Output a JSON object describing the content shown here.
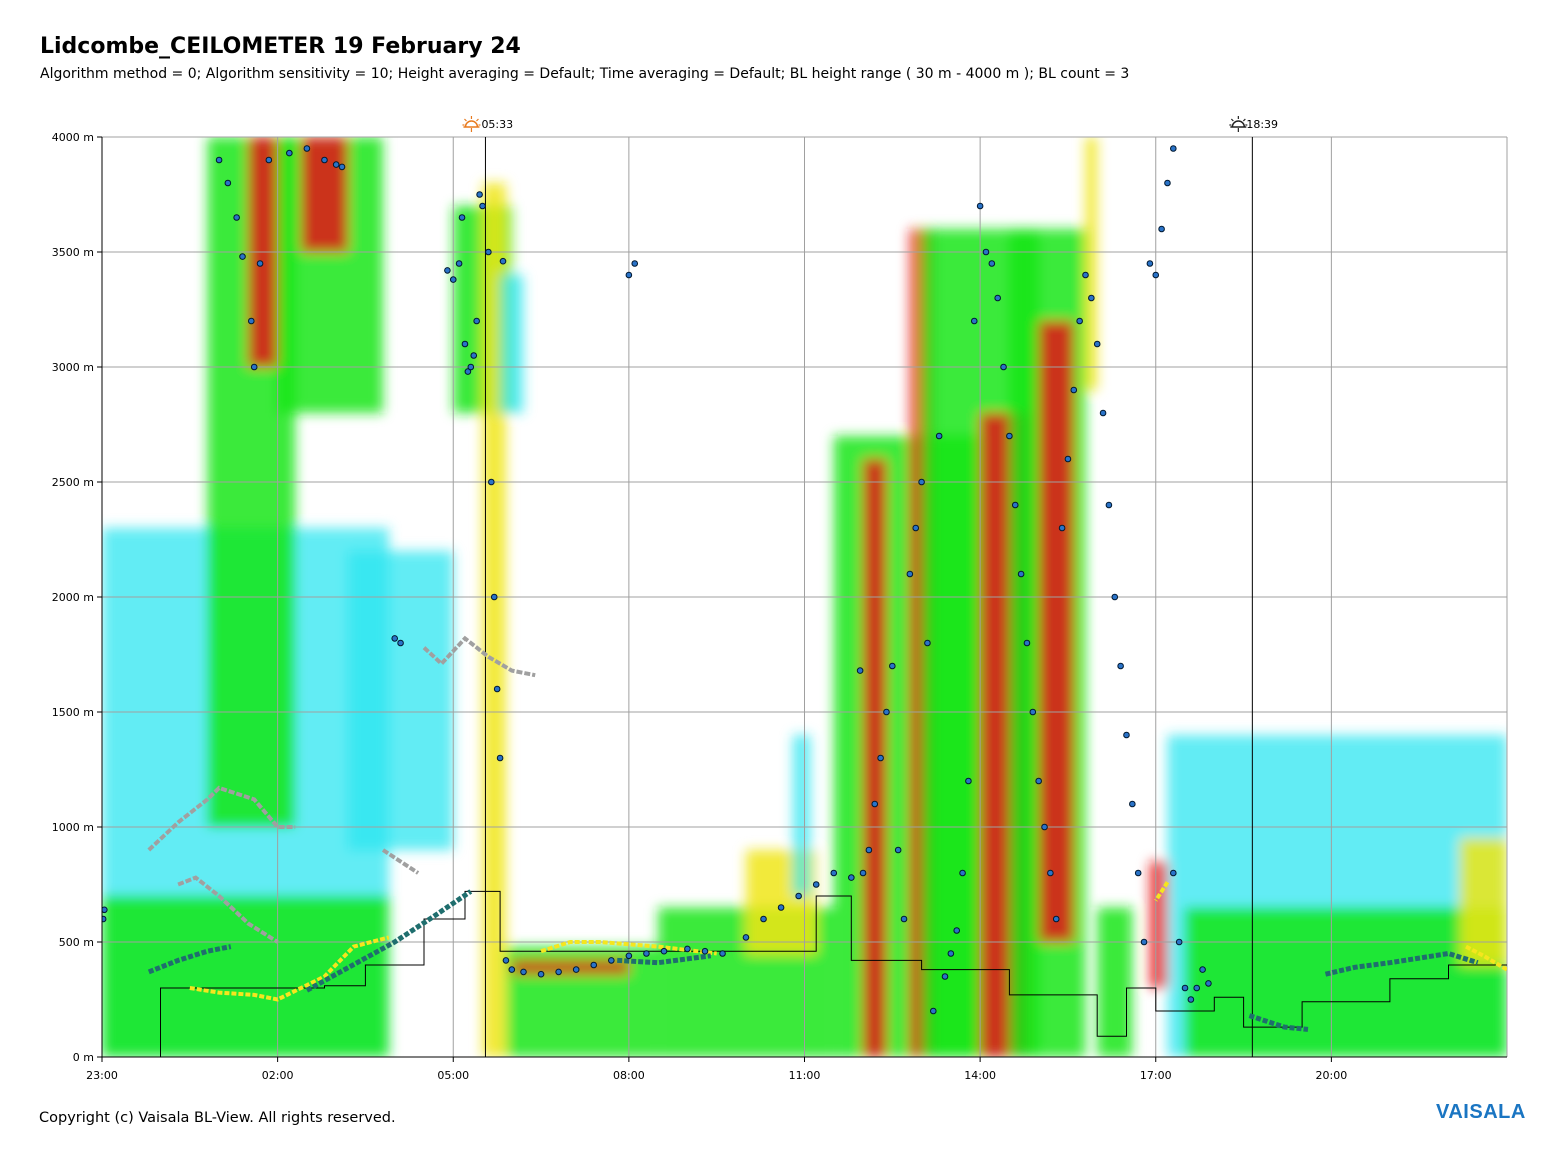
{
  "header": {
    "title": "Lidcombe_CEILOMETER 19 February 24",
    "subtitle": "Algorithm method = 0; Algorithm sensitivity = 10; Height averaging = Default; Time averaging = Default; BL height range ( 30 m - 4000 m ); BL count = 3"
  },
  "footer": {
    "copyright": "Copyright (c) Vaisala BL-View. All rights reserved.",
    "logo_text": "VAISALA"
  },
  "colors": {
    "weak": "#2ee6f0",
    "low": "#14e614",
    "mid": "#f0e614",
    "high": "#e61414",
    "bl_marker": "#2a73c8",
    "bl_step": "#000000",
    "sunrise_icon": "#e87a1e",
    "sunset_icon": "#222222",
    "logo": "#1a75c2"
  },
  "chart_data": {
    "type": "heatmap",
    "xlabel": "",
    "ylabel": "",
    "x_ticks": [
      "23:00",
      "02:00",
      "05:00",
      "08:00",
      "11:00",
      "14:00",
      "17:00",
      "20:00"
    ],
    "y_ticks": [
      "0 m",
      "500 m",
      "1000 m",
      "1500 m",
      "2000 m",
      "2500 m",
      "3000 m",
      "3500 m",
      "4000 m"
    ],
    "xlim_hours": [
      23,
      47
    ],
    "ylim_m": [
      0,
      4000
    ],
    "grid": true,
    "sunrise": {
      "label": "05:33",
      "hour": 29.55
    },
    "sunset": {
      "label": "18:39",
      "hour": 42.65
    },
    "backscatter_regions": [
      {
        "level": "weak",
        "x": [
          23.0,
          27.9
        ],
        "y": [
          0,
          2300
        ]
      },
      {
        "level": "low",
        "x": [
          23.0,
          27.9
        ],
        "y": [
          0,
          700
        ]
      },
      {
        "level": "low",
        "x": [
          24.8,
          26.3
        ],
        "y": [
          1000,
          4000
        ]
      },
      {
        "level": "high",
        "x": [
          25.5,
          26.0
        ],
        "y": [
          3000,
          4000
        ]
      },
      {
        "level": "low",
        "x": [
          26.0,
          27.8
        ],
        "y": [
          2800,
          4000
        ]
      },
      {
        "level": "high",
        "x": [
          26.4,
          27.2
        ],
        "y": [
          3500,
          4000
        ]
      },
      {
        "level": "weak",
        "x": [
          27.2,
          29.0
        ],
        "y": [
          900,
          2200
        ]
      },
      {
        "level": "low",
        "x": [
          29.0,
          30.0
        ],
        "y": [
          2800,
          3700
        ]
      },
      {
        "level": "mid",
        "x": [
          29.5,
          29.9
        ],
        "y": [
          0,
          3800
        ]
      },
      {
        "level": "weak",
        "x": [
          29.8,
          30.2
        ],
        "y": [
          2800,
          3400
        ]
      },
      {
        "level": "low",
        "x": [
          29.9,
          32.5
        ],
        "y": [
          0,
          480
        ]
      },
      {
        "level": "high",
        "x": [
          30.0,
          32.0
        ],
        "y": [
          360,
          420
        ]
      },
      {
        "level": "low",
        "x": [
          32.5,
          35.5
        ],
        "y": [
          0,
          650
        ]
      },
      {
        "level": "mid",
        "x": [
          34.0,
          35.2
        ],
        "y": [
          450,
          900
        ]
      },
      {
        "level": "weak",
        "x": [
          34.8,
          35.1
        ],
        "y": [
          700,
          1400
        ]
      },
      {
        "level": "low",
        "x": [
          35.5,
          38.0
        ],
        "y": [
          0,
          2700
        ]
      },
      {
        "level": "high",
        "x": [
          36.0,
          36.4
        ],
        "y": [
          0,
          2600
        ]
      },
      {
        "level": "high",
        "x": [
          36.8,
          37.2
        ],
        "y": [
          0,
          3600
        ]
      },
      {
        "level": "low",
        "x": [
          37.0,
          39.0
        ],
        "y": [
          0,
          3600
        ]
      },
      {
        "level": "high",
        "x": [
          38.0,
          38.8
        ],
        "y": [
          0,
          2800
        ]
      },
      {
        "level": "low",
        "x": [
          38.5,
          39.8
        ],
        "y": [
          0,
          3600
        ]
      },
      {
        "level": "high",
        "x": [
          39.0,
          39.6
        ],
        "y": [
          500,
          3200
        ]
      },
      {
        "level": "mid",
        "x": [
          39.8,
          40.0
        ],
        "y": [
          2900,
          4000
        ]
      },
      {
        "level": "low",
        "x": [
          40.0,
          40.6
        ],
        "y": [
          0,
          650
        ]
      },
      {
        "level": "high",
        "x": [
          40.9,
          41.2
        ],
        "y": [
          300,
          850
        ]
      },
      {
        "level": "weak",
        "x": [
          41.2,
          47.0
        ],
        "y": [
          0,
          1400
        ]
      },
      {
        "level": "low",
        "x": [
          41.5,
          47.0
        ],
        "y": [
          0,
          650
        ]
      },
      {
        "level": "mid",
        "x": [
          46.2,
          47.0
        ],
        "y": [
          400,
          950
        ]
      }
    ],
    "bl_step_line": [
      [
        23.0,
        0
      ],
      [
        24.0,
        300
      ],
      [
        26.8,
        310
      ],
      [
        27.5,
        400
      ],
      [
        28.5,
        600
      ],
      [
        29.2,
        720
      ],
      [
        29.8,
        460
      ],
      [
        34.0,
        460
      ],
      [
        35.2,
        700
      ],
      [
        35.8,
        420
      ],
      [
        37.0,
        380
      ],
      [
        38.5,
        270
      ],
      [
        40.0,
        90
      ],
      [
        40.5,
        300
      ],
      [
        41.0,
        200
      ],
      [
        42.0,
        260
      ],
      [
        42.5,
        130
      ],
      [
        43.5,
        240
      ],
      [
        45.0,
        340
      ],
      [
        46.0,
        400
      ],
      [
        47.0,
        400
      ]
    ],
    "bl_gray_traces": [
      [
        [
          23.8,
          900
        ],
        [
          24.3,
          1020
        ],
        [
          24.8,
          1120
        ],
        [
          25.0,
          1170
        ],
        [
          25.6,
          1120
        ],
        [
          26.0,
          1000
        ],
        [
          26.3,
          1000
        ]
      ],
      [
        [
          24.3,
          750
        ],
        [
          24.6,
          780
        ],
        [
          25.0,
          700
        ],
        [
          25.5,
          580
        ],
        [
          26.0,
          500
        ]
      ],
      [
        [
          27.8,
          900
        ],
        [
          28.4,
          800
        ]
      ],
      [
        [
          28.5,
          1780
        ],
        [
          28.8,
          1710
        ],
        [
          29.2,
          1820
        ],
        [
          29.6,
          1740
        ],
        [
          30.0,
          1680
        ],
        [
          30.4,
          1660
        ]
      ]
    ],
    "bl_yellow_traces": [
      [
        [
          24.5,
          300
        ],
        [
          25.0,
          280
        ],
        [
          25.6,
          270
        ],
        [
          26.0,
          250
        ],
        [
          26.8,
          350
        ],
        [
          27.3,
          480
        ],
        [
          27.9,
          520
        ]
      ],
      [
        [
          30.5,
          460
        ],
        [
          31.0,
          500
        ],
        [
          31.5,
          500
        ],
        [
          32.5,
          480
        ],
        [
          33.5,
          450
        ]
      ],
      [
        [
          41.2,
          760
        ],
        [
          41.0,
          680
        ]
      ],
      [
        [
          46.3,
          480
        ],
        [
          46.6,
          440
        ],
        [
          47.0,
          380
        ]
      ]
    ],
    "bl_teal_traces": [
      [
        [
          23.8,
          370
        ],
        [
          24.3,
          420
        ],
        [
          24.8,
          460
        ],
        [
          25.2,
          480
        ]
      ],
      [
        [
          26.5,
          290
        ],
        [
          27.0,
          360
        ],
        [
          27.5,
          430
        ],
        [
          28.0,
          500
        ],
        [
          28.6,
          600
        ],
        [
          29.3,
          720
        ]
      ],
      [
        [
          31.8,
          420
        ],
        [
          32.5,
          410
        ],
        [
          33.4,
          440
        ]
      ],
      [
        [
          42.6,
          180
        ],
        [
          43.2,
          130
        ],
        [
          43.6,
          120
        ]
      ],
      [
        [
          43.9,
          360
        ],
        [
          44.4,
          390
        ],
        [
          45.0,
          410
        ],
        [
          45.5,
          430
        ],
        [
          46.0,
          450
        ],
        [
          46.5,
          410
        ]
      ]
    ],
    "bl_points": [
      [
        23.02,
        600
      ],
      [
        23.04,
        640
      ],
      [
        25.0,
        3900
      ],
      [
        25.15,
        3800
      ],
      [
        25.3,
        3650
      ],
      [
        25.4,
        3480
      ],
      [
        25.55,
        3200
      ],
      [
        25.6,
        3000
      ],
      [
        25.7,
        3450
      ],
      [
        25.85,
        3900
      ],
      [
        26.2,
        3930
      ],
      [
        26.5,
        3950
      ],
      [
        26.8,
        3900
      ],
      [
        27.0,
        3880
      ],
      [
        27.1,
        3870
      ],
      [
        28.0,
        1820
      ],
      [
        28.1,
        1800
      ],
      [
        28.9,
        3420
      ],
      [
        29.0,
        3380
      ],
      [
        29.1,
        3450
      ],
      [
        29.15,
        3650
      ],
      [
        29.2,
        3100
      ],
      [
        29.25,
        2980
      ],
      [
        29.3,
        3000
      ],
      [
        29.35,
        3050
      ],
      [
        29.4,
        3200
      ],
      [
        29.45,
        3750
      ],
      [
        29.5,
        3700
      ],
      [
        29.6,
        3500
      ],
      [
        29.65,
        2500
      ],
      [
        29.7,
        2000
      ],
      [
        29.75,
        1600
      ],
      [
        29.8,
        1300
      ],
      [
        29.85,
        3460
      ],
      [
        29.9,
        420
      ],
      [
        30.0,
        380
      ],
      [
        30.2,
        370
      ],
      [
        30.5,
        360
      ],
      [
        30.8,
        370
      ],
      [
        31.1,
        380
      ],
      [
        31.4,
        400
      ],
      [
        31.7,
        420
      ],
      [
        32.0,
        440
      ],
      [
        32.3,
        450
      ],
      [
        32.6,
        460
      ],
      [
        33.0,
        470
      ],
      [
        33.3,
        460
      ],
      [
        33.6,
        450
      ],
      [
        34.0,
        520
      ],
      [
        34.3,
        600
      ],
      [
        34.6,
        650
      ],
      [
        34.9,
        700
      ],
      [
        35.2,
        750
      ],
      [
        35.5,
        800
      ],
      [
        35.8,
        780
      ],
      [
        32.0,
        3400
      ],
      [
        32.1,
        3450
      ],
      [
        35.95,
        1680
      ],
      [
        36.0,
        800
      ],
      [
        36.1,
        900
      ],
      [
        36.2,
        1100
      ],
      [
        36.3,
        1300
      ],
      [
        36.4,
        1500
      ],
      [
        36.5,
        1700
      ],
      [
        36.6,
        900
      ],
      [
        36.7,
        600
      ],
      [
        36.8,
        2100
      ],
      [
        36.9,
        2300
      ],
      [
        37.0,
        2500
      ],
      [
        37.1,
        1800
      ],
      [
        37.2,
        200
      ],
      [
        37.3,
        2700
      ],
      [
        37.4,
        350
      ],
      [
        37.5,
        450
      ],
      [
        37.6,
        550
      ],
      [
        37.7,
        800
      ],
      [
        37.8,
        1200
      ],
      [
        37.9,
        3200
      ],
      [
        38.0,
        3700
      ],
      [
        38.1,
        3500
      ],
      [
        38.2,
        3450
      ],
      [
        38.3,
        3300
      ],
      [
        38.4,
        3000
      ],
      [
        38.5,
        2700
      ],
      [
        38.6,
        2400
      ],
      [
        38.7,
        2100
      ],
      [
        38.8,
        1800
      ],
      [
        38.9,
        1500
      ],
      [
        39.0,
        1200
      ],
      [
        39.1,
        1000
      ],
      [
        39.2,
        800
      ],
      [
        39.3,
        600
      ],
      [
        39.4,
        2300
      ],
      [
        39.5,
        2600
      ],
      [
        39.6,
        2900
      ],
      [
        39.7,
        3200
      ],
      [
        39.8,
        3400
      ],
      [
        39.9,
        3300
      ],
      [
        40.0,
        3100
      ],
      [
        40.1,
        2800
      ],
      [
        40.2,
        2400
      ],
      [
        40.3,
        2000
      ],
      [
        40.4,
        1700
      ],
      [
        40.5,
        1400
      ],
      [
        40.6,
        1100
      ],
      [
        40.7,
        800
      ],
      [
        40.8,
        500
      ],
      [
        40.9,
        3450
      ],
      [
        41.0,
        3400
      ],
      [
        41.1,
        3600
      ],
      [
        41.2,
        3800
      ],
      [
        41.3,
        3950
      ],
      [
        41.3,
        800
      ],
      [
        41.4,
        500
      ],
      [
        41.5,
        300
      ],
      [
        41.6,
        250
      ],
      [
        41.7,
        300
      ],
      [
        41.8,
        380
      ],
      [
        41.9,
        320
      ]
    ]
  }
}
